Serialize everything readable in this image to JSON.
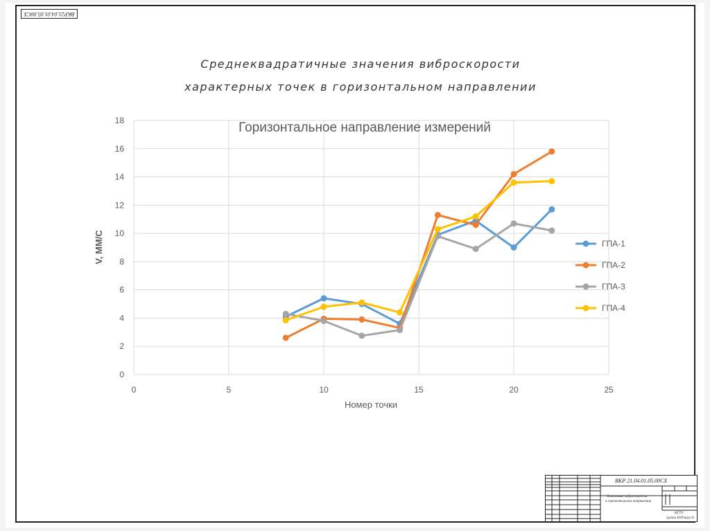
{
  "sheet": {
    "code_mirrored": "ВКР21.04.01.05.00СХ",
    "title_line_1": "Среднеквадратичные значения виброскорости",
    "title_line_2": "характерных точек в горизонтальном направлении"
  },
  "stamp": {
    "designation": "ВКР 21.04.01.05.00СХ",
    "description_line_1": "Эталонные виброскорости",
    "description_line_2": "в горизонтальном направлении",
    "org_line_1": "НГТУ",
    "org_line_2": "группа НЭГм(и)-31"
  },
  "colors": {
    "series": [
      "#5b9bd5",
      "#ed7d31",
      "#a5a5a5",
      "#ffc000"
    ],
    "grid": "#d9d9d9",
    "axis_text": "#595959"
  },
  "chart_data": {
    "type": "line",
    "title": "Горизонтальное направление измерений",
    "xlabel": "Номер точки",
    "ylabel": "V, ММ/С",
    "xlim": [
      0,
      25
    ],
    "ylim": [
      0,
      18
    ],
    "xticks": [
      0,
      5,
      10,
      15,
      20,
      25
    ],
    "yticks": [
      0,
      2,
      4,
      6,
      8,
      10,
      12,
      14,
      16,
      18
    ],
    "grid": true,
    "legend_position": "right",
    "x": [
      8,
      10,
      12,
      14,
      16,
      18,
      20,
      22
    ],
    "series": [
      {
        "name": "ГПА-1",
        "values": [
          4.1,
          5.4,
          5.0,
          3.6,
          9.9,
          10.9,
          9.0,
          11.7
        ]
      },
      {
        "name": "ГПА-2",
        "values": [
          2.6,
          3.95,
          3.9,
          3.3,
          11.3,
          10.6,
          14.2,
          15.8
        ]
      },
      {
        "name": "ГПА-3",
        "values": [
          4.3,
          3.8,
          2.75,
          3.15,
          9.8,
          8.9,
          10.7,
          10.2
        ]
      },
      {
        "name": "ГПА-4",
        "values": [
          3.85,
          4.8,
          5.1,
          4.4,
          10.3,
          11.2,
          13.6,
          13.7
        ]
      }
    ]
  }
}
